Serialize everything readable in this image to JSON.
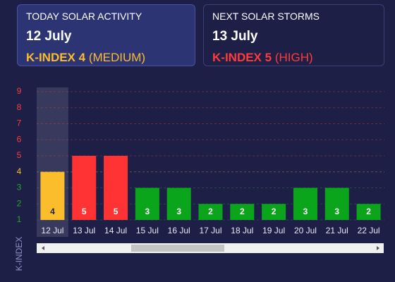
{
  "cards": [
    {
      "label": "TODAY SOLAR ACTIVITY",
      "date": "12 July",
      "index": "K-INDEX 4",
      "level": "(MEDIUM)"
    },
    {
      "label": "NEXT SOLAR STORMS",
      "date": "13 July",
      "index": "K-INDEX 5",
      "level": "(HIGH)"
    }
  ],
  "chart_data": {
    "type": "bar",
    "y_label": "K-INDEX",
    "categories": [
      "12 Jul",
      "13 Jul",
      "14 Jul",
      "15 Jul",
      "16 Jul",
      "17 Jul",
      "18 Jul",
      "19 Jul",
      "20 Jul",
      "21 Jul",
      "22 Jul"
    ],
    "values": [
      4,
      5,
      5,
      3,
      3,
      2,
      2,
      2,
      3,
      3,
      2
    ],
    "colors": [
      "#fbbd2b",
      "#ff3333",
      "#ff3333",
      "#0aa51a",
      "#0aa51a",
      "#0aa51a",
      "#0aa51a",
      "#0aa51a",
      "#0aa51a",
      "#0aa51a",
      "#0aa51a"
    ],
    "ylim": [
      1,
      9
    ],
    "yticks": [
      1,
      2,
      3,
      4,
      5,
      6,
      7,
      8,
      9
    ],
    "ytick_colors": [
      "#1faa2a",
      "#1faa2a",
      "#1faa2a",
      "#fbbd2b",
      "#ff3b3b",
      "#ff3b3b",
      "#ff3b3b",
      "#ff3b3b",
      "#ff3b3b"
    ],
    "grid": true,
    "highlight": 0
  }
}
